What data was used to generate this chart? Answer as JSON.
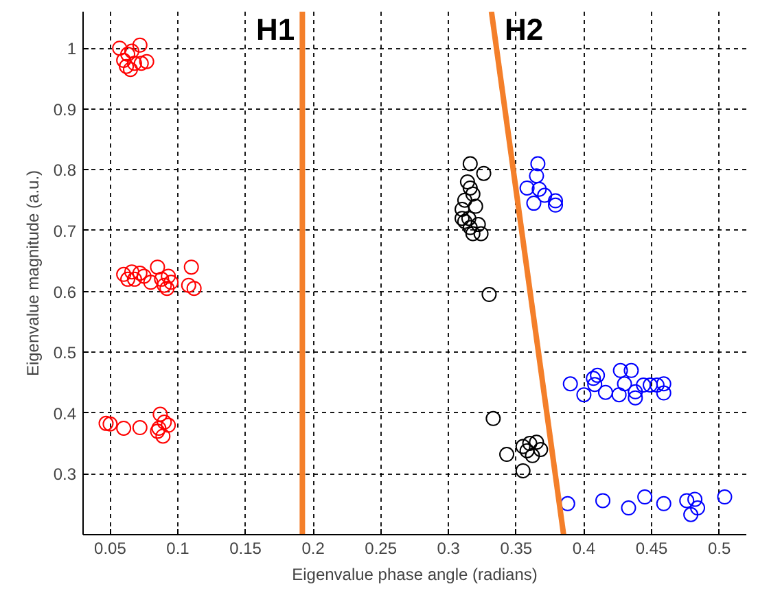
{
  "chart_data": {
    "type": "scatter",
    "xlabel": "Eigenvalue phase angle (radians)",
    "ylabel": "Eigenvalue magnitude (a.u.)",
    "xlim": [
      0.03,
      0.52
    ],
    "ylim": [
      0.2,
      1.06
    ],
    "xticks": [
      0.05,
      0.1,
      0.15,
      0.2,
      0.25,
      0.3,
      0.35,
      0.4,
      0.45,
      0.5
    ],
    "yticks": [
      0.3,
      0.4,
      0.5,
      0.6,
      0.7,
      0.8,
      0.9,
      1
    ],
    "grid": true,
    "marker": "circle",
    "series": [
      {
        "color": "#ff0000",
        "x": [
          0.057,
          0.063,
          0.066,
          0.072,
          0.06,
          0.065,
          0.068,
          0.073,
          0.077,
          0.062,
          0.06,
          0.066,
          0.068,
          0.072,
          0.075,
          0.08,
          0.085,
          0.088,
          0.09,
          0.093,
          0.095,
          0.092,
          0.11,
          0.108,
          0.112,
          0.063,
          0.047,
          0.05,
          0.06,
          0.072,
          0.087,
          0.086,
          0.09,
          0.093,
          0.089,
          0.085
        ],
        "values": [
          1.0,
          0.99,
          0.995,
          1.005,
          0.98,
          0.965,
          0.975,
          0.975,
          0.978,
          0.97,
          0.628,
          0.632,
          0.62,
          0.63,
          0.625,
          0.615,
          0.64,
          0.62,
          0.61,
          0.625,
          0.615,
          0.605,
          0.64,
          0.61,
          0.605,
          0.62,
          0.383,
          0.382,
          0.375,
          0.376,
          0.398,
          0.375,
          0.385,
          0.38,
          0.362,
          0.37
        ]
      },
      {
        "color": "#000000",
        "x": [
          0.316,
          0.326,
          0.314,
          0.316,
          0.312,
          0.318,
          0.31,
          0.315,
          0.32,
          0.312,
          0.316,
          0.322,
          0.318,
          0.324,
          0.31,
          0.33,
          0.333,
          0.343,
          0.355,
          0.358,
          0.36,
          0.365,
          0.368,
          0.362,
          0.355
        ],
        "values": [
          0.81,
          0.794,
          0.78,
          0.77,
          0.75,
          0.76,
          0.735,
          0.72,
          0.74,
          0.715,
          0.705,
          0.71,
          0.695,
          0.695,
          0.72,
          0.595,
          0.391,
          0.332,
          0.345,
          0.338,
          0.35,
          0.352,
          0.34,
          0.33,
          0.305
        ]
      },
      {
        "color": "#0000ff",
        "x": [
          0.366,
          0.365,
          0.358,
          0.367,
          0.371,
          0.363,
          0.379,
          0.379,
          0.39,
          0.4,
          0.407,
          0.41,
          0.408,
          0.416,
          0.426,
          0.427,
          0.435,
          0.43,
          0.438,
          0.438,
          0.444,
          0.449,
          0.454,
          0.459,
          0.459,
          0.388,
          0.414,
          0.433,
          0.445,
          0.459,
          0.476,
          0.482,
          0.484,
          0.479,
          0.504
        ],
        "values": [
          0.81,
          0.79,
          0.77,
          0.768,
          0.758,
          0.745,
          0.749,
          0.742,
          0.448,
          0.43,
          0.457,
          0.462,
          0.447,
          0.434,
          0.43,
          0.47,
          0.47,
          0.448,
          0.435,
          0.425,
          0.446,
          0.446,
          0.446,
          0.448,
          0.433,
          0.251,
          0.256,
          0.244,
          0.262,
          0.251,
          0.256,
          0.258,
          0.244,
          0.233,
          0.262
        ]
      },
      {
        "type": "line",
        "color": "#f47f2a",
        "marker": "none",
        "x": [
          0.192,
          0.192
        ],
        "values": [
          0.2,
          1.06
        ]
      },
      {
        "type": "line",
        "color": "#f47f2a",
        "marker": "none",
        "x": [
          0.3317,
          0.385
        ],
        "values": [
          1.06,
          0.2
        ]
      }
    ],
    "annotations": [
      "H1",
      "H2"
    ]
  }
}
